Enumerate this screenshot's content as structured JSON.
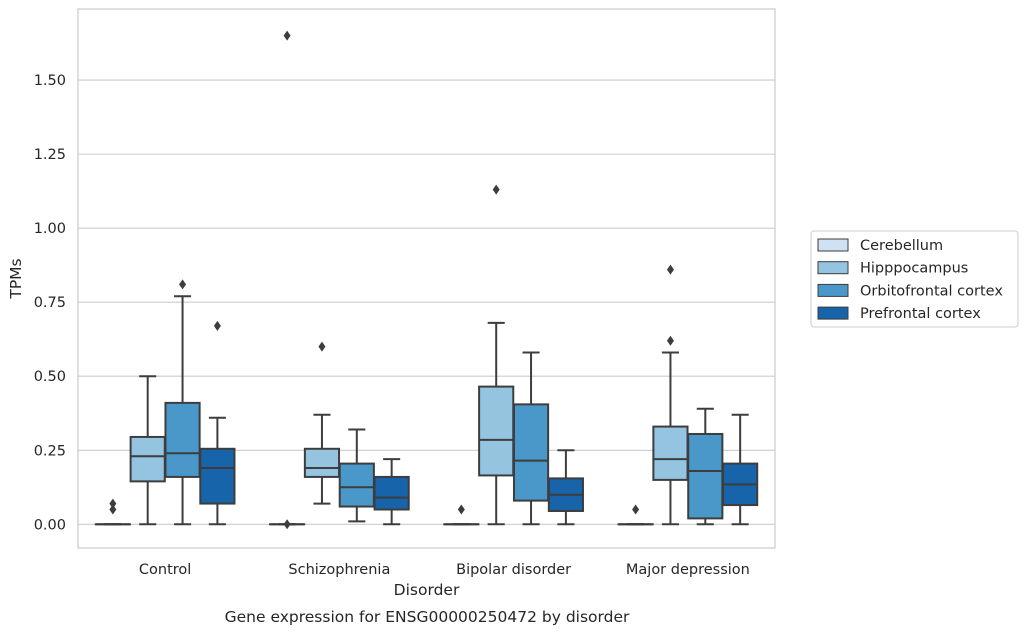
{
  "chart_data": {
    "type": "box",
    "caption": "Gene expression for ENSG00000250472 by disorder",
    "xlabel": "Disorder",
    "ylabel": "TPMs",
    "ylim": [
      -0.08,
      1.74
    ],
    "yticks": [
      0.0,
      0.25,
      0.5,
      0.75,
      1.0,
      1.25,
      1.5
    ],
    "ytick_labels": [
      "0.00",
      "0.25",
      "0.50",
      "0.75",
      "1.00",
      "1.25",
      "1.50"
    ],
    "grid": "horizontal",
    "legend_position": "right",
    "categories": [
      "Control",
      "Schizophrenia",
      "Bipolar disorder",
      "Major depression"
    ],
    "series": [
      {
        "name": "Cerebellum",
        "color": "#d0e1f2",
        "boxes": [
          {
            "whisker_low": 0.0,
            "q1": 0.0,
            "median": 0.0,
            "q3": 0.0,
            "whisker_high": 0.0,
            "outliers": [
              0.05,
              0.07
            ]
          },
          {
            "whisker_low": 0.0,
            "q1": 0.0,
            "median": 0.0,
            "q3": 0.0,
            "whisker_high": 0.0,
            "outliers": [
              0.0,
              1.65
            ]
          },
          {
            "whisker_low": 0.0,
            "q1": 0.0,
            "median": 0.0,
            "q3": 0.0,
            "whisker_high": 0.0,
            "outliers": [
              0.05
            ]
          },
          {
            "whisker_low": 0.0,
            "q1": 0.0,
            "median": 0.0,
            "q3": 0.0,
            "whisker_high": 0.0,
            "outliers": [
              0.05
            ]
          }
        ]
      },
      {
        "name": "Hipppocampus",
        "color": "#94c4df",
        "boxes": [
          {
            "whisker_low": 0.0,
            "q1": 0.145,
            "median": 0.23,
            "q3": 0.295,
            "whisker_high": 0.5,
            "outliers": []
          },
          {
            "whisker_low": 0.07,
            "q1": 0.16,
            "median": 0.19,
            "q3": 0.255,
            "whisker_high": 0.37,
            "outliers": [
              0.6
            ]
          },
          {
            "whisker_low": 0.0,
            "q1": 0.165,
            "median": 0.285,
            "q3": 0.465,
            "whisker_high": 0.68,
            "outliers": [
              1.13
            ]
          },
          {
            "whisker_low": 0.0,
            "q1": 0.15,
            "median": 0.22,
            "q3": 0.33,
            "whisker_high": 0.58,
            "outliers": [
              0.62,
              0.86
            ]
          }
        ]
      },
      {
        "name": "Orbitofrontal cortex",
        "color": "#4a98c9",
        "boxes": [
          {
            "whisker_low": 0.0,
            "q1": 0.16,
            "median": 0.24,
            "q3": 0.41,
            "whisker_high": 0.77,
            "outliers": [
              0.81
            ]
          },
          {
            "whisker_low": 0.01,
            "q1": 0.06,
            "median": 0.125,
            "q3": 0.205,
            "whisker_high": 0.32,
            "outliers": []
          },
          {
            "whisker_low": 0.0,
            "q1": 0.08,
            "median": 0.215,
            "q3": 0.405,
            "whisker_high": 0.58,
            "outliers": []
          },
          {
            "whisker_low": 0.0,
            "q1": 0.02,
            "median": 0.18,
            "q3": 0.305,
            "whisker_high": 0.39,
            "outliers": []
          }
        ]
      },
      {
        "name": "Prefrontal cortex",
        "color": "#1764ab",
        "boxes": [
          {
            "whisker_low": 0.0,
            "q1": 0.07,
            "median": 0.19,
            "q3": 0.255,
            "whisker_high": 0.36,
            "outliers": [
              0.67
            ]
          },
          {
            "whisker_low": 0.0,
            "q1": 0.05,
            "median": 0.09,
            "q3": 0.16,
            "whisker_high": 0.22,
            "outliers": []
          },
          {
            "whisker_low": 0.0,
            "q1": 0.045,
            "median": 0.1,
            "q3": 0.155,
            "whisker_high": 0.25,
            "outliers": []
          },
          {
            "whisker_low": 0.0,
            "q1": 0.065,
            "median": 0.135,
            "q3": 0.205,
            "whisker_high": 0.37,
            "outliers": []
          }
        ]
      }
    ]
  }
}
